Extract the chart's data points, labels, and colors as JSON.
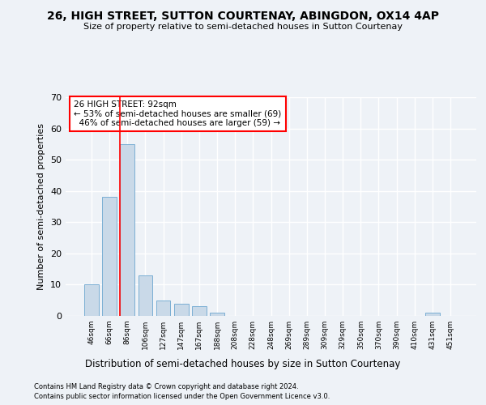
{
  "title1": "26, HIGH STREET, SUTTON COURTENAY, ABINGDON, OX14 4AP",
  "title2": "Size of property relative to semi-detached houses in Sutton Courtenay",
  "xlabel": "Distribution of semi-detached houses by size in Sutton Courtenay",
  "ylabel": "Number of semi-detached properties",
  "bin_labels": [
    "46sqm",
    "66sqm",
    "86sqm",
    "106sqm",
    "127sqm",
    "147sqm",
    "167sqm",
    "188sqm",
    "208sqm",
    "228sqm",
    "248sqm",
    "269sqm",
    "289sqm",
    "309sqm",
    "329sqm",
    "350sqm",
    "370sqm",
    "390sqm",
    "410sqm",
    "431sqm",
    "451sqm"
  ],
  "bar_heights": [
    10,
    38,
    55,
    13,
    5,
    4,
    3,
    1,
    0,
    0,
    0,
    0,
    0,
    0,
    0,
    0,
    0,
    0,
    0,
    1,
    0
  ],
  "bar_color": "#c9d9e8",
  "bar_edge_color": "#7bafd4",
  "property_label": "26 HIGH STREET: 92sqm",
  "pct_smaller": 53,
  "count_smaller": 69,
  "pct_larger": 46,
  "count_larger": 59,
  "ylim": [
    0,
    70
  ],
  "yticks": [
    0,
    10,
    20,
    30,
    40,
    50,
    60,
    70
  ],
  "footnote1": "Contains HM Land Registry data © Crown copyright and database right 2024.",
  "footnote2": "Contains public sector information licensed under the Open Government Licence v3.0.",
  "background_color": "#eef2f7",
  "grid_color": "#ffffff"
}
